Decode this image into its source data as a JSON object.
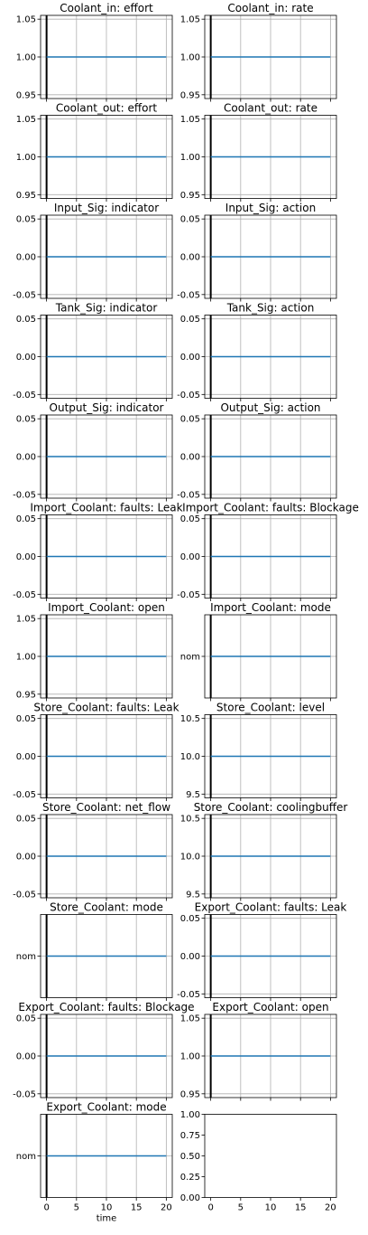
{
  "chart_data": [
    {
      "type": "line",
      "title": "Coolant_in: effort",
      "x": [
        0,
        20
      ],
      "y": [
        1.0,
        1.0
      ],
      "ylim": [
        0.945,
        1.055
      ],
      "yticks": [
        "0.95",
        "1.00",
        "1.05"
      ],
      "ytick_values": [
        0.95,
        1.0,
        1.05
      ],
      "grid": true
    },
    {
      "type": "line",
      "title": "Coolant_in: rate",
      "x": [
        0,
        20
      ],
      "y": [
        1.0,
        1.0
      ],
      "ylim": [
        0.945,
        1.055
      ],
      "yticks": [
        "0.95",
        "1.00",
        "1.05"
      ],
      "ytick_values": [
        0.95,
        1.0,
        1.05
      ],
      "grid": true
    },
    {
      "type": "line",
      "title": "Coolant_out: effort",
      "x": [
        0,
        20
      ],
      "y": [
        1.0,
        1.0
      ],
      "ylim": [
        0.945,
        1.055
      ],
      "yticks": [
        "0.95",
        "1.00",
        "1.05"
      ],
      "ytick_values": [
        0.95,
        1.0,
        1.05
      ],
      "grid": true
    },
    {
      "type": "line",
      "title": "Coolant_out: rate",
      "x": [
        0,
        20
      ],
      "y": [
        1.0,
        1.0
      ],
      "ylim": [
        0.945,
        1.055
      ],
      "yticks": [
        "0.95",
        "1.00",
        "1.05"
      ],
      "ytick_values": [
        0.95,
        1.0,
        1.05
      ],
      "grid": true
    },
    {
      "type": "line",
      "title": "Input_Sig: indicator",
      "x": [
        0,
        20
      ],
      "y": [
        0.0,
        0.0
      ],
      "ylim": [
        -0.055,
        0.055
      ],
      "yticks": [
        "-0.05",
        "0.00",
        "0.05"
      ],
      "ytick_values": [
        -0.05,
        0.0,
        0.05
      ],
      "grid": true
    },
    {
      "type": "line",
      "title": "Input_Sig: action",
      "x": [
        0,
        20
      ],
      "y": [
        0.0,
        0.0
      ],
      "ylim": [
        -0.055,
        0.055
      ],
      "yticks": [
        "-0.05",
        "0.00",
        "0.05"
      ],
      "ytick_values": [
        -0.05,
        0.0,
        0.05
      ],
      "grid": true
    },
    {
      "type": "line",
      "title": "Tank_Sig: indicator",
      "x": [
        0,
        20
      ],
      "y": [
        0.0,
        0.0
      ],
      "ylim": [
        -0.055,
        0.055
      ],
      "yticks": [
        "-0.05",
        "0.00",
        "0.05"
      ],
      "ytick_values": [
        -0.05,
        0.0,
        0.05
      ],
      "grid": true
    },
    {
      "type": "line",
      "title": "Tank_Sig: action",
      "x": [
        0,
        20
      ],
      "y": [
        0.0,
        0.0
      ],
      "ylim": [
        -0.055,
        0.055
      ],
      "yticks": [
        "-0.05",
        "0.00",
        "0.05"
      ],
      "ytick_values": [
        -0.05,
        0.0,
        0.05
      ],
      "grid": true
    },
    {
      "type": "line",
      "title": "Output_Sig: indicator",
      "x": [
        0,
        20
      ],
      "y": [
        0.0,
        0.0
      ],
      "ylim": [
        -0.055,
        0.055
      ],
      "yticks": [
        "-0.05",
        "0.00",
        "0.05"
      ],
      "ytick_values": [
        -0.05,
        0.0,
        0.05
      ],
      "grid": true
    },
    {
      "type": "line",
      "title": "Output_Sig: action",
      "x": [
        0,
        20
      ],
      "y": [
        0.0,
        0.0
      ],
      "ylim": [
        -0.055,
        0.055
      ],
      "yticks": [
        "-0.05",
        "0.00",
        "0.05"
      ],
      "ytick_values": [
        -0.05,
        0.0,
        0.05
      ],
      "grid": true
    },
    {
      "type": "line",
      "title": "Import_Coolant: faults: Leak",
      "x": [
        0,
        20
      ],
      "y": [
        0.0,
        0.0
      ],
      "ylim": [
        -0.055,
        0.055
      ],
      "yticks": [
        "-0.05",
        "0.00",
        "0.05"
      ],
      "ytick_values": [
        -0.05,
        0.0,
        0.05
      ],
      "grid": true
    },
    {
      "type": "line",
      "title": "Import_Coolant: faults: Blockage",
      "x": [
        0,
        20
      ],
      "y": [
        0.0,
        0.0
      ],
      "ylim": [
        -0.055,
        0.055
      ],
      "yticks": [
        "-0.05",
        "0.00",
        "0.05"
      ],
      "ytick_values": [
        -0.05,
        0.0,
        0.05
      ],
      "grid": true
    },
    {
      "type": "line",
      "title": "Import_Coolant: open",
      "x": [
        0,
        20
      ],
      "y": [
        1.0,
        1.0
      ],
      "ylim": [
        0.945,
        1.055
      ],
      "yticks": [
        "0.95",
        "1.00",
        "1.05"
      ],
      "ytick_values": [
        0.95,
        1.0,
        1.05
      ],
      "grid": true
    },
    {
      "type": "line",
      "title": "Import_Coolant: mode",
      "x": [
        0,
        20
      ],
      "y": [
        0.0,
        0.0
      ],
      "ylim": [
        -0.055,
        0.055
      ],
      "yticks": [
        "nom"
      ],
      "ytick_values": [
        0.0
      ],
      "grid": true
    },
    {
      "type": "line",
      "title": "Store_Coolant: faults: Leak",
      "x": [
        0,
        20
      ],
      "y": [
        0.0,
        0.0
      ],
      "ylim": [
        -0.055,
        0.055
      ],
      "yticks": [
        "-0.05",
        "0.00",
        "0.05"
      ],
      "ytick_values": [
        -0.05,
        0.0,
        0.05
      ],
      "grid": true
    },
    {
      "type": "line",
      "title": "Store_Coolant: level",
      "x": [
        0,
        20
      ],
      "y": [
        10.0,
        10.0
      ],
      "ylim": [
        9.45,
        10.55
      ],
      "yticks": [
        "9.5",
        "10.0",
        "10.5"
      ],
      "ytick_values": [
        9.5,
        10.0,
        10.5
      ],
      "grid": true
    },
    {
      "type": "line",
      "title": "Store_Coolant: net_flow",
      "x": [
        0,
        20
      ],
      "y": [
        0.0,
        0.0
      ],
      "ylim": [
        -0.055,
        0.055
      ],
      "yticks": [
        "-0.05",
        "0.00",
        "0.05"
      ],
      "ytick_values": [
        -0.05,
        0.0,
        0.05
      ],
      "grid": true
    },
    {
      "type": "line",
      "title": "Store_Coolant: coolingbuffer",
      "x": [
        0,
        20
      ],
      "y": [
        10.0,
        10.0
      ],
      "ylim": [
        9.45,
        10.55
      ],
      "yticks": [
        "9.5",
        "10.0",
        "10.5"
      ],
      "ytick_values": [
        9.5,
        10.0,
        10.5
      ],
      "grid": true
    },
    {
      "type": "line",
      "title": "Store_Coolant: mode",
      "x": [
        0,
        20
      ],
      "y": [
        0.0,
        0.0
      ],
      "ylim": [
        -0.055,
        0.055
      ],
      "yticks": [
        "nom"
      ],
      "ytick_values": [
        0.0
      ],
      "grid": true
    },
    {
      "type": "line",
      "title": "Export_Coolant: faults: Leak",
      "x": [
        0,
        20
      ],
      "y": [
        0.0,
        0.0
      ],
      "ylim": [
        -0.055,
        0.055
      ],
      "yticks": [
        "-0.05",
        "0.00",
        "0.05"
      ],
      "ytick_values": [
        -0.05,
        0.0,
        0.05
      ],
      "grid": true
    },
    {
      "type": "line",
      "title": "Export_Coolant: faults: Blockage",
      "x": [
        0,
        20
      ],
      "y": [
        0.0,
        0.0
      ],
      "ylim": [
        -0.055,
        0.055
      ],
      "yticks": [
        "-0.05",
        "0.00",
        "0.05"
      ],
      "ytick_values": [
        -0.05,
        0.0,
        0.05
      ],
      "grid": true
    },
    {
      "type": "line",
      "title": "Export_Coolant: open",
      "x": [
        0,
        20
      ],
      "y": [
        1.0,
        1.0
      ],
      "ylim": [
        0.945,
        1.055
      ],
      "yticks": [
        "0.95",
        "1.00",
        "1.05"
      ],
      "ytick_values": [
        0.95,
        1.0,
        1.05
      ],
      "grid": true
    },
    {
      "type": "line",
      "title": "Export_Coolant: mode",
      "x": [
        0,
        20
      ],
      "y": [
        0.0,
        0.0
      ],
      "ylim": [
        -0.055,
        0.055
      ],
      "yticks": [
        "nom"
      ],
      "ytick_values": [
        0.0
      ],
      "grid": true,
      "xlabel": "time",
      "xticks": [
        "0",
        "5",
        "10",
        "15",
        "20"
      ],
      "xtick_values": [
        0,
        5,
        10,
        15,
        20
      ]
    },
    {
      "type": "empty",
      "title": "",
      "ylim": [
        0,
        1
      ],
      "yticks": [
        "0.00",
        "0.25",
        "0.50",
        "0.75",
        "1.00"
      ],
      "ytick_values": [
        0,
        0.25,
        0.5,
        0.75,
        1.0
      ],
      "xticks": [
        "0",
        "5",
        "10",
        "15",
        "20"
      ],
      "xtick_values": [
        0,
        5,
        10,
        15,
        20
      ],
      "grid": false
    }
  ],
  "xlim": [
    -1,
    21
  ],
  "marker_line_x": 0,
  "colors": {
    "series": "#1f77b4",
    "grid": "#b0b0b0",
    "axes": "#000000",
    "marker": "#000000"
  }
}
